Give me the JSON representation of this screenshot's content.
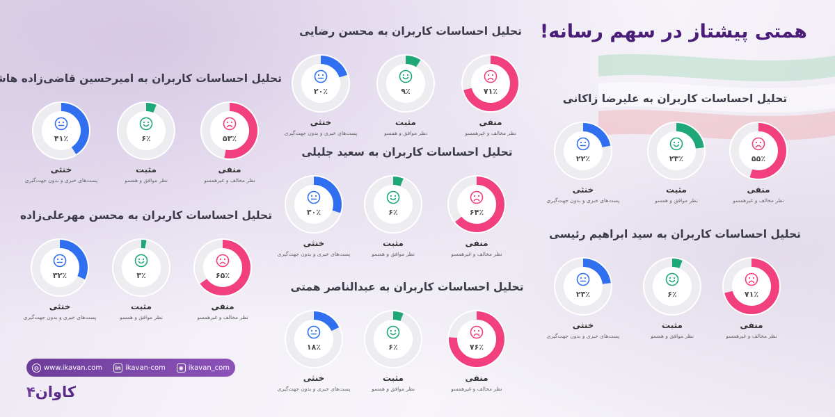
{
  "page": {
    "title": "همتی پیشتاز در سهم رسانه!"
  },
  "categories": {
    "negative": {
      "label": "منفی",
      "sub": "نظر مخالف و غیرهمسو",
      "color": "#f23f7e"
    },
    "positive": {
      "label": "مثبت",
      "sub": "نظر موافق و همسو",
      "color": "#1ea878"
    },
    "neutral": {
      "label": "خنثی",
      "sub": "پست‌های خبری و بدون جهت‌گیری",
      "color": "#2f6ff0"
    }
  },
  "panels": [
    {
      "title": "تحلیل احساسات کاربران به محسن رضایی",
      "pct_labels": [
        "۷۱٪",
        "۹٪",
        "۲۰٪"
      ]
    },
    {
      "title": "تحلیل احساسات کاربران به امیرحسین قاضی‌زاده هاشمی",
      "pct_labels": [
        "۵۳٪",
        "۶٪",
        "۴۱٪"
      ]
    },
    {
      "title": "تحلیل احساسات کاربران به علیرضا زاکانی",
      "pct_labels": [
        "۵۵٪",
        "۲۳٪",
        "۲۲٪"
      ]
    },
    {
      "title": "تحلیل احساسات کاربران به سعید جلیلی",
      "pct_labels": [
        "۶۴٪",
        "۶٪",
        "۳۰٪"
      ]
    },
    {
      "title": "تحلیل احساسات کاربران به محسن مهرعلی‌زاده",
      "pct_labels": [
        "۶۵٪",
        "۳٪",
        "۳۲٪"
      ]
    },
    {
      "title": "تحلیل احساسات کاربران به سید ابراهیم رئیسی",
      "pct_labels": [
        "۷۱٪",
        "۶٪",
        "۲۳٪"
      ]
    },
    {
      "title": "تحلیل احساسات کاربران به عبدالناصر همتی",
      "pct_labels": [
        "۷۶٪",
        "۶٪",
        "۱۸٪"
      ]
    }
  ],
  "chart_data": [
    {
      "type": "donut",
      "title": "تحلیل احساسات کاربران به محسن رضایی",
      "categories": [
        "منفی",
        "مثبت",
        "خنثی"
      ],
      "values": [
        71,
        9,
        20
      ],
      "unit": "%"
    },
    {
      "type": "donut",
      "title": "تحلیل احساسات کاربران به امیرحسین قاضی‌زاده هاشمی",
      "categories": [
        "منفی",
        "مثبت",
        "خنثی"
      ],
      "values": [
        53,
        6,
        41
      ],
      "unit": "%"
    },
    {
      "type": "donut",
      "title": "تحلیل احساسات کاربران به علیرضا زاکانی",
      "categories": [
        "منفی",
        "مثبت",
        "خنثی"
      ],
      "values": [
        55,
        23,
        22
      ],
      "unit": "%"
    },
    {
      "type": "donut",
      "title": "تحلیل احساسات کاربران به سعید جلیلی",
      "categories": [
        "منفی",
        "مثبت",
        "خنثی"
      ],
      "values": [
        64,
        6,
        30
      ],
      "unit": "%"
    },
    {
      "type": "donut",
      "title": "تحلیل احساسات کاربران به محسن مهرعلی‌زاده",
      "categories": [
        "منفی",
        "مثبت",
        "خنثی"
      ],
      "values": [
        65,
        3,
        32
      ],
      "unit": "%"
    },
    {
      "type": "donut",
      "title": "تحلیل احساسات کاربران به سید ابراهیم رئیسی",
      "categories": [
        "منفی",
        "مثبت",
        "خنثی"
      ],
      "values": [
        71,
        6,
        23
      ],
      "unit": "%"
    },
    {
      "type": "donut",
      "title": "تحلیل احساسات کاربران به عبدالناصر همتی",
      "categories": [
        "منفی",
        "مثبت",
        "خنثی"
      ],
      "values": [
        76,
        6,
        18
      ],
      "unit": "%"
    }
  ],
  "footer": {
    "website": "www.ikavan.com",
    "linkedin": "ikavan-com",
    "instagram": "ikavan_com",
    "logo_text": "کاوان",
    "logo_mark": "۴"
  },
  "icons": {
    "website": "globe-icon",
    "linkedin": "linkedin-icon",
    "instagram": "instagram-icon",
    "negative": "sad-face-icon",
    "positive": "happy-face-icon",
    "neutral": "neutral-face-icon"
  }
}
